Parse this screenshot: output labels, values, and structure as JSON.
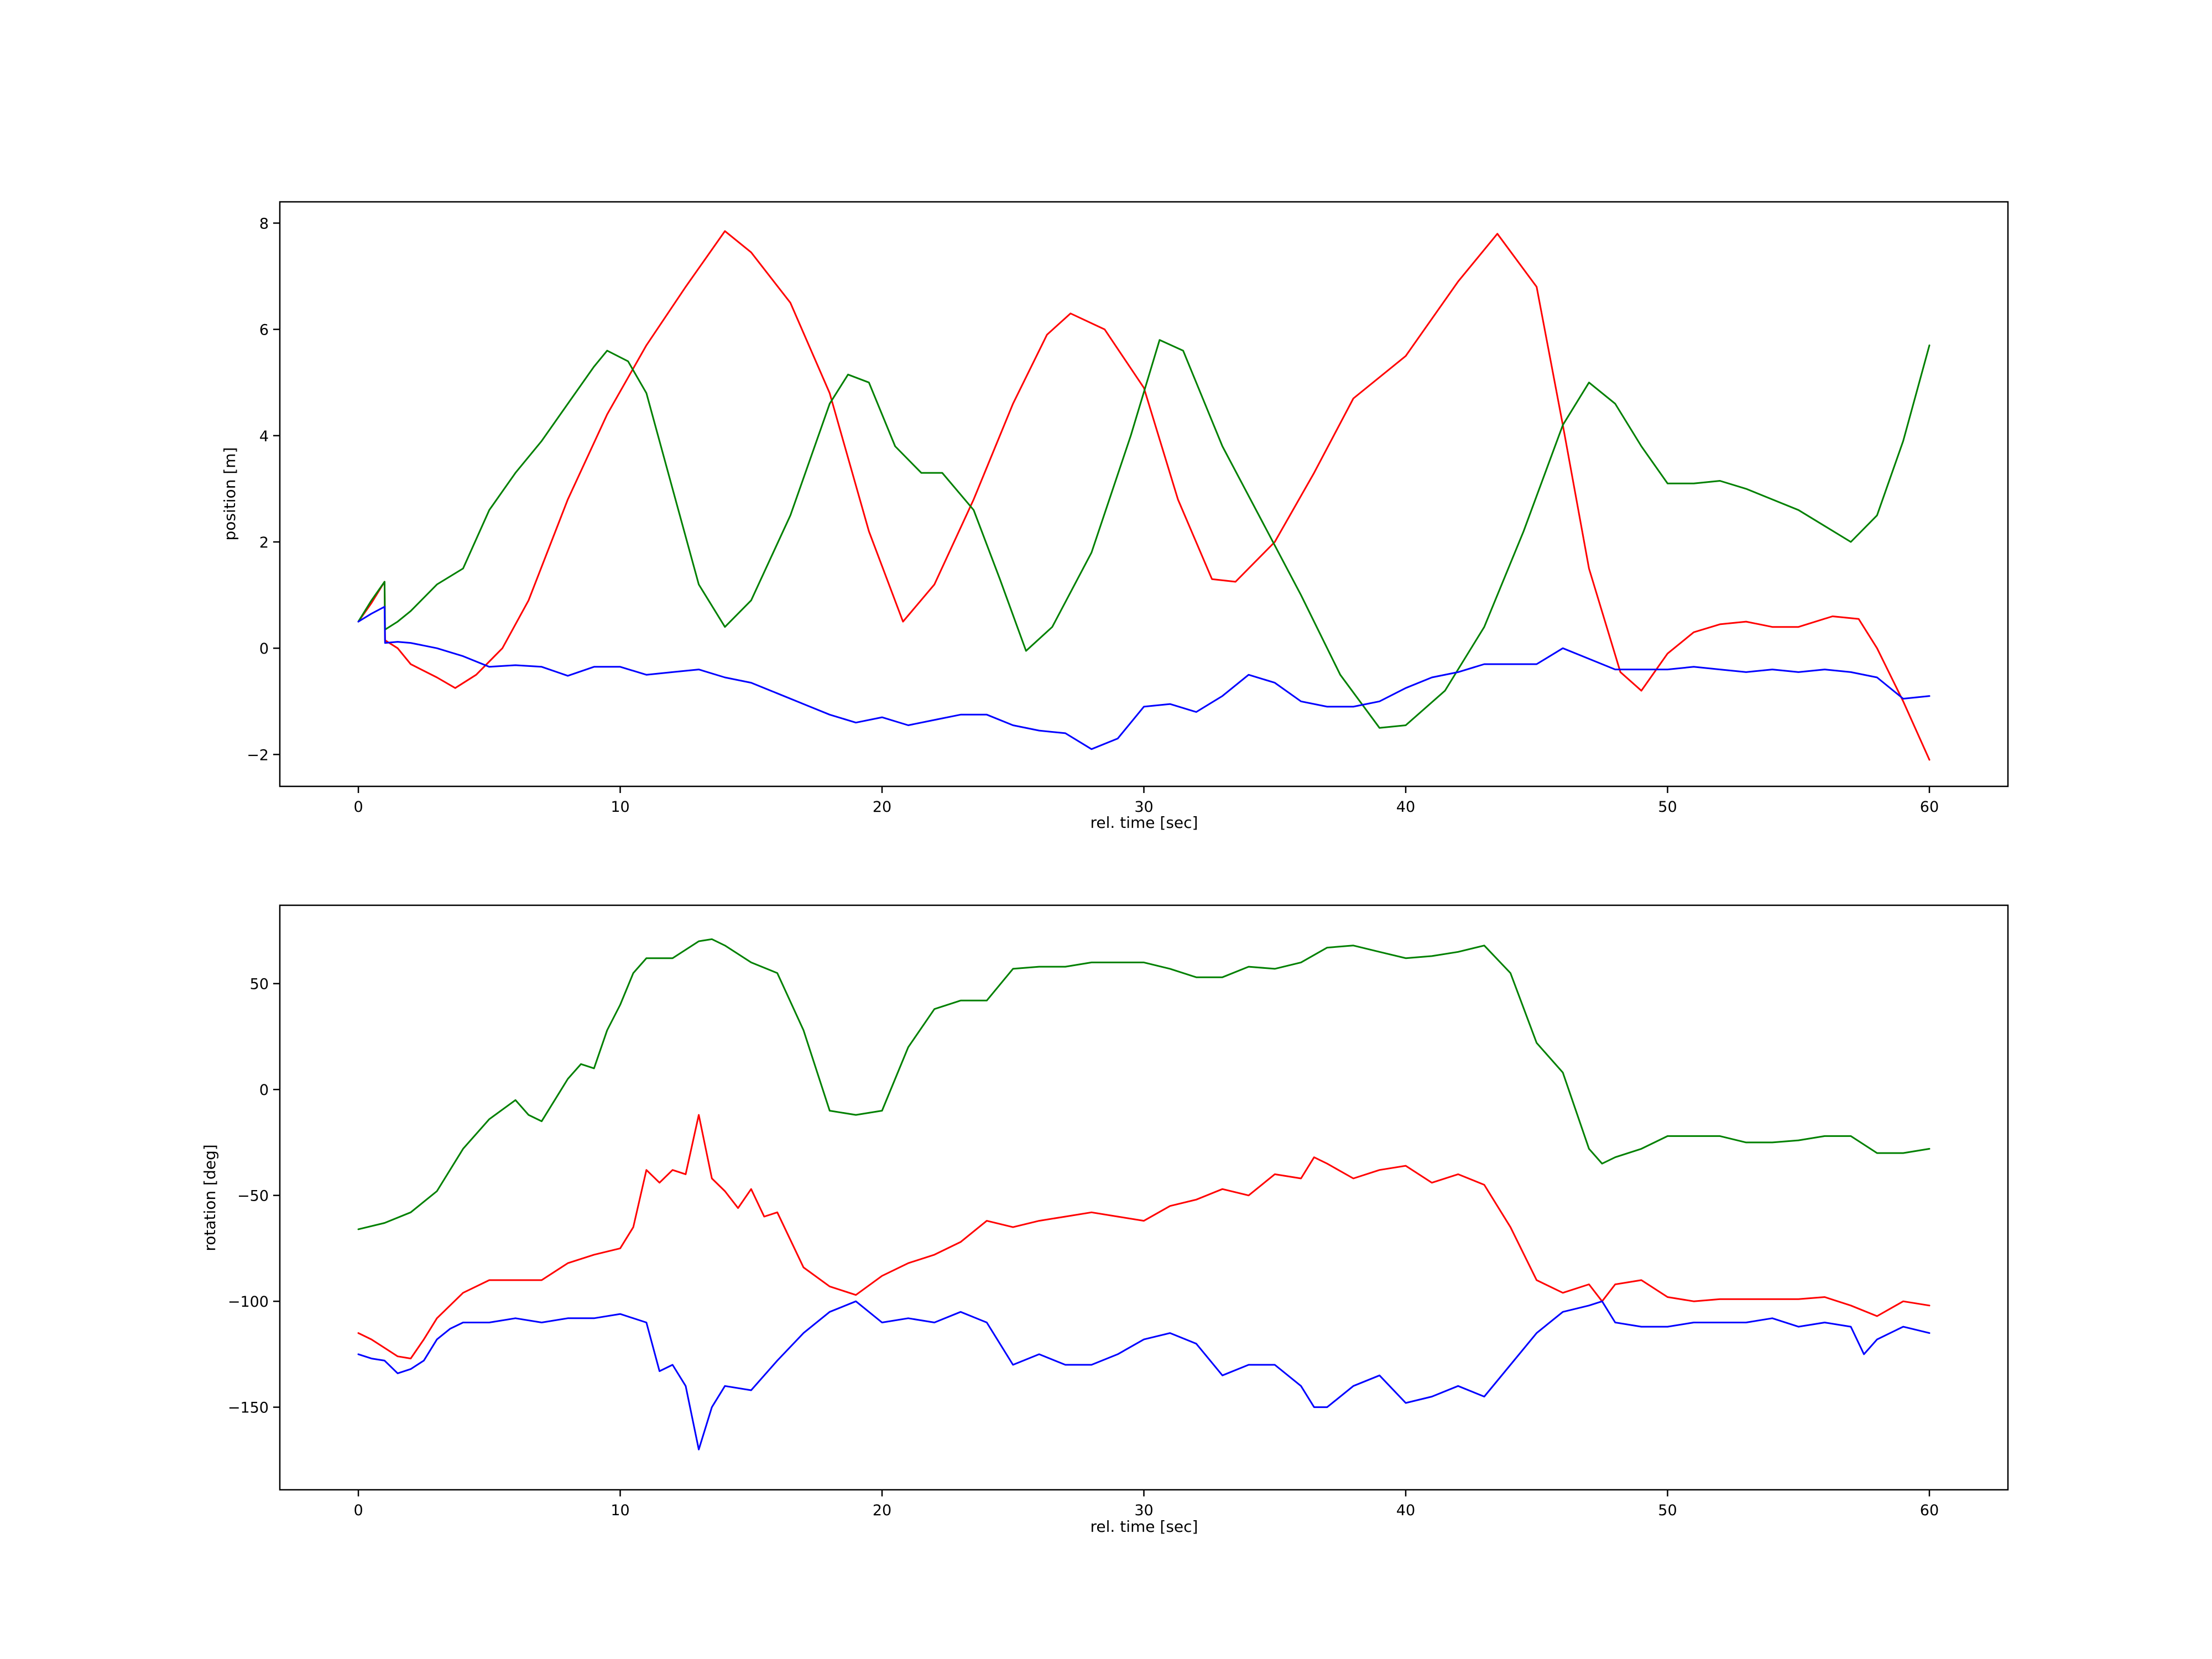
{
  "chart_data": [
    {
      "type": "line",
      "title": "",
      "xlabel": "rel. time [sec]",
      "ylabel": "position [m]",
      "xlim": [
        -3,
        63
      ],
      "ylim": [
        -2.6,
        8.4
      ],
      "xticks": [
        0,
        10,
        20,
        30,
        40,
        50,
        60
      ],
      "yticks": [
        -2,
        0,
        2,
        4,
        6,
        8
      ],
      "grid": false,
      "legend": "none",
      "series": [
        {
          "color": "#ff0000",
          "x": [
            0,
            0.5,
            1,
            1.02,
            1.5,
            2,
            3,
            3.7,
            4.5,
            5.5,
            6.5,
            8,
            9.5,
            11,
            12.5,
            14,
            15,
            16.5,
            18,
            19.5,
            20.8,
            22,
            23.5,
            25,
            26.3,
            27.2,
            28.5,
            30,
            31.3,
            32.6,
            33.5,
            35,
            36.5,
            38,
            40,
            42,
            43.5,
            45,
            46,
            47,
            48.2,
            49,
            50,
            51,
            52,
            53,
            54,
            55,
            56.3,
            57.3,
            58,
            59,
            60
          ],
          "y": [
            0.5,
            0.85,
            1.25,
            0.15,
            0.0,
            -0.3,
            -0.55,
            -0.75,
            -0.5,
            0.0,
            0.9,
            2.8,
            4.4,
            5.7,
            6.8,
            7.85,
            7.45,
            6.5,
            4.8,
            2.2,
            0.5,
            1.2,
            2.8,
            4.6,
            5.9,
            6.3,
            6.0,
            4.9,
            2.8,
            1.3,
            1.25,
            2.0,
            3.3,
            4.7,
            5.5,
            6.9,
            7.8,
            6.8,
            4.2,
            1.5,
            -0.45,
            -0.8,
            -0.1,
            0.3,
            0.45,
            0.5,
            0.4,
            0.4,
            0.6,
            0.55,
            0.0,
            -1.0,
            -2.1
          ]
        },
        {
          "color": "#008000",
          "x": [
            0,
            0.5,
            1,
            1.02,
            1.5,
            2,
            3,
            4,
            5,
            6,
            7,
            8,
            9,
            9.5,
            10.3,
            11,
            12,
            13,
            14,
            15,
            16.5,
            18,
            18.7,
            19.5,
            20.5,
            21.5,
            22.3,
            23.5,
            24.5,
            25.5,
            26.5,
            28,
            29.5,
            30.6,
            31.5,
            33,
            34.5,
            36,
            37.5,
            39,
            40,
            41.5,
            43,
            44.5,
            46,
            47,
            48,
            49,
            50,
            51,
            52,
            53,
            54,
            55,
            56,
            57,
            58,
            59,
            60
          ],
          "y": [
            0.5,
            0.9,
            1.25,
            0.35,
            0.5,
            0.7,
            1.2,
            1.5,
            2.6,
            3.3,
            3.9,
            4.6,
            5.3,
            5.6,
            5.4,
            4.8,
            3.0,
            1.2,
            0.4,
            0.9,
            2.5,
            4.6,
            5.15,
            5.0,
            3.8,
            3.3,
            3.3,
            2.6,
            1.3,
            -0.05,
            0.4,
            1.8,
            4.0,
            5.8,
            5.6,
            3.8,
            2.4,
            1.0,
            -0.5,
            -1.5,
            -1.45,
            -0.8,
            0.4,
            2.2,
            4.2,
            5.0,
            4.6,
            3.8,
            3.1,
            3.1,
            3.15,
            3.0,
            2.8,
            2.6,
            2.3,
            2.0,
            2.5,
            3.9,
            5.7
          ]
        },
        {
          "color": "#0000ff",
          "x": [
            0,
            0.5,
            1,
            1.02,
            1.5,
            2,
            3,
            4,
            5,
            6,
            7,
            8,
            9,
            10,
            11,
            12,
            13,
            14,
            15,
            16,
            17,
            18,
            19,
            20,
            21,
            22,
            23,
            24,
            25,
            26,
            27,
            28,
            29,
            30,
            31,
            32,
            33,
            34,
            35,
            36,
            37,
            38,
            39,
            40,
            41,
            42,
            43,
            44,
            45,
            46,
            47,
            48,
            49,
            50,
            51,
            52,
            53,
            54,
            55,
            56,
            57,
            58,
            59,
            60
          ],
          "y": [
            0.5,
            0.65,
            0.78,
            0.1,
            0.12,
            0.1,
            0.0,
            -0.15,
            -0.35,
            -0.32,
            -0.35,
            -0.52,
            -0.35,
            -0.35,
            -0.5,
            -0.45,
            -0.4,
            -0.55,
            -0.65,
            -0.85,
            -1.05,
            -1.25,
            -1.4,
            -1.3,
            -1.45,
            -1.35,
            -1.25,
            -1.25,
            -1.45,
            -1.55,
            -1.6,
            -1.9,
            -1.7,
            -1.1,
            -1.05,
            -1.2,
            -0.9,
            -0.5,
            -0.65,
            -1.0,
            -1.1,
            -1.1,
            -1.0,
            -0.75,
            -0.55,
            -0.45,
            -0.3,
            -0.3,
            -0.3,
            0.0,
            -0.2,
            -0.4,
            -0.4,
            -0.4,
            -0.35,
            -0.4,
            -0.45,
            -0.4,
            -0.45,
            -0.4,
            -0.45,
            -0.55,
            -0.95,
            -0.9
          ]
        }
      ]
    },
    {
      "type": "line",
      "title": "",
      "xlabel": "rel. time [sec]",
      "ylabel": "rotation [deg]",
      "xlim": [
        -3,
        63
      ],
      "ylim": [
        -189,
        87
      ],
      "xticks": [
        0,
        10,
        20,
        30,
        40,
        50,
        60
      ],
      "yticks": [
        -150,
        -100,
        -50,
        0,
        50
      ],
      "grid": false,
      "legend": "none",
      "series": [
        {
          "color": "#ff0000",
          "x": [
            0,
            0.5,
            1,
            1.5,
            2,
            2.5,
            3,
            4,
            5,
            6,
            7,
            8,
            9,
            10,
            10.5,
            11,
            11.5,
            12,
            12.5,
            13,
            13.5,
            14,
            14.5,
            15,
            15.5,
            16,
            17,
            18,
            19,
            20,
            21,
            22,
            23,
            24,
            25,
            26,
            27,
            28,
            29,
            30,
            31,
            32,
            33,
            34,
            35,
            36,
            36.5,
            37,
            38,
            39,
            40,
            41,
            42,
            43,
            44,
            45,
            46,
            47,
            47.5,
            48,
            49,
            50,
            51,
            52,
            53,
            54,
            55,
            56,
            57,
            58,
            59,
            60
          ],
          "y": [
            -115,
            -118,
            -122,
            -126,
            -127,
            -118,
            -108,
            -96,
            -90,
            -90,
            -90,
            -82,
            -78,
            -75,
            -65,
            -38,
            -44,
            -38,
            -40,
            -12,
            -42,
            -48,
            -56,
            -47,
            -60,
            -58,
            -84,
            -93,
            -97,
            -88,
            -82,
            -78,
            -72,
            -62,
            -65,
            -62,
            -60,
            -58,
            -60,
            -62,
            -55,
            -52,
            -47,
            -50,
            -40,
            -42,
            -32,
            -35,
            -42,
            -38,
            -36,
            -44,
            -40,
            -45,
            -65,
            -90,
            -96,
            -92,
            -100,
            -92,
            -90,
            -98,
            -100,
            -99,
            -99,
            -99,
            -99,
            -98,
            -102,
            -107,
            -100,
            -102
          ]
        },
        {
          "color": "#008000",
          "x": [
            0,
            1,
            2,
            3,
            4,
            5,
            6,
            6.5,
            7,
            8,
            8.5,
            9,
            9.5,
            10,
            10.5,
            11,
            12,
            13,
            13.5,
            14,
            15,
            16,
            17,
            18,
            19,
            20,
            21,
            22,
            23,
            24,
            25,
            26,
            27,
            28,
            29,
            30,
            31,
            32,
            33,
            34,
            35,
            36,
            37,
            38,
            39,
            40,
            41,
            42,
            43,
            44,
            45,
            46,
            47,
            47.5,
            48,
            49,
            50,
            51,
            52,
            53,
            54,
            55,
            56,
            57,
            58,
            59,
            60
          ],
          "y": [
            -66,
            -63,
            -58,
            -48,
            -28,
            -14,
            -5,
            -12,
            -15,
            5,
            12,
            10,
            28,
            40,
            55,
            62,
            62,
            70,
            71,
            68,
            60,
            55,
            28,
            -10,
            -12,
            -10,
            20,
            38,
            42,
            42,
            57,
            58,
            58,
            60,
            60,
            60,
            57,
            53,
            53,
            58,
            57,
            60,
            67,
            68,
            65,
            62,
            63,
            65,
            68,
            55,
            22,
            8,
            -28,
            -35,
            -32,
            -28,
            -22,
            -22,
            -22,
            -25,
            -25,
            -24,
            -22,
            -22,
            -30,
            -30,
            -28
          ]
        },
        {
          "color": "#0000ff",
          "x": [
            0,
            0.5,
            1,
            1.5,
            2,
            2.5,
            3,
            3.5,
            4,
            5,
            6,
            7,
            8,
            9,
            10,
            11,
            11.5,
            12,
            12.5,
            13,
            13.5,
            14,
            15,
            16,
            17,
            18,
            19,
            20,
            21,
            22,
            23,
            24,
            25,
            26,
            27,
            28,
            29,
            30,
            31,
            32,
            33,
            34,
            35,
            36,
            36.5,
            37,
            38,
            39,
            40,
            41,
            42,
            43,
            44,
            45,
            46,
            47,
            47.5,
            48,
            49,
            50,
            51,
            52,
            53,
            54,
            55,
            56,
            57,
            57.5,
            58,
            59,
            60
          ],
          "y": [
            -125,
            -127,
            -128,
            -134,
            -132,
            -128,
            -118,
            -113,
            -110,
            -110,
            -108,
            -110,
            -108,
            -108,
            -106,
            -110,
            -133,
            -130,
            -140,
            -170,
            -150,
            -140,
            -142,
            -128,
            -115,
            -105,
            -100,
            -110,
            -108,
            -110,
            -105,
            -110,
            -130,
            -125,
            -130,
            -130,
            -125,
            -118,
            -115,
            -120,
            -135,
            -130,
            -130,
            -140,
            -150,
            -150,
            -140,
            -135,
            -148,
            -145,
            -140,
            -145,
            -130,
            -115,
            -105,
            -102,
            -100,
            -110,
            -112,
            -112,
            -110,
            -110,
            -110,
            -108,
            -112,
            -110,
            -112,
            -125,
            -118,
            -112,
            -115
          ]
        }
      ]
    }
  ]
}
